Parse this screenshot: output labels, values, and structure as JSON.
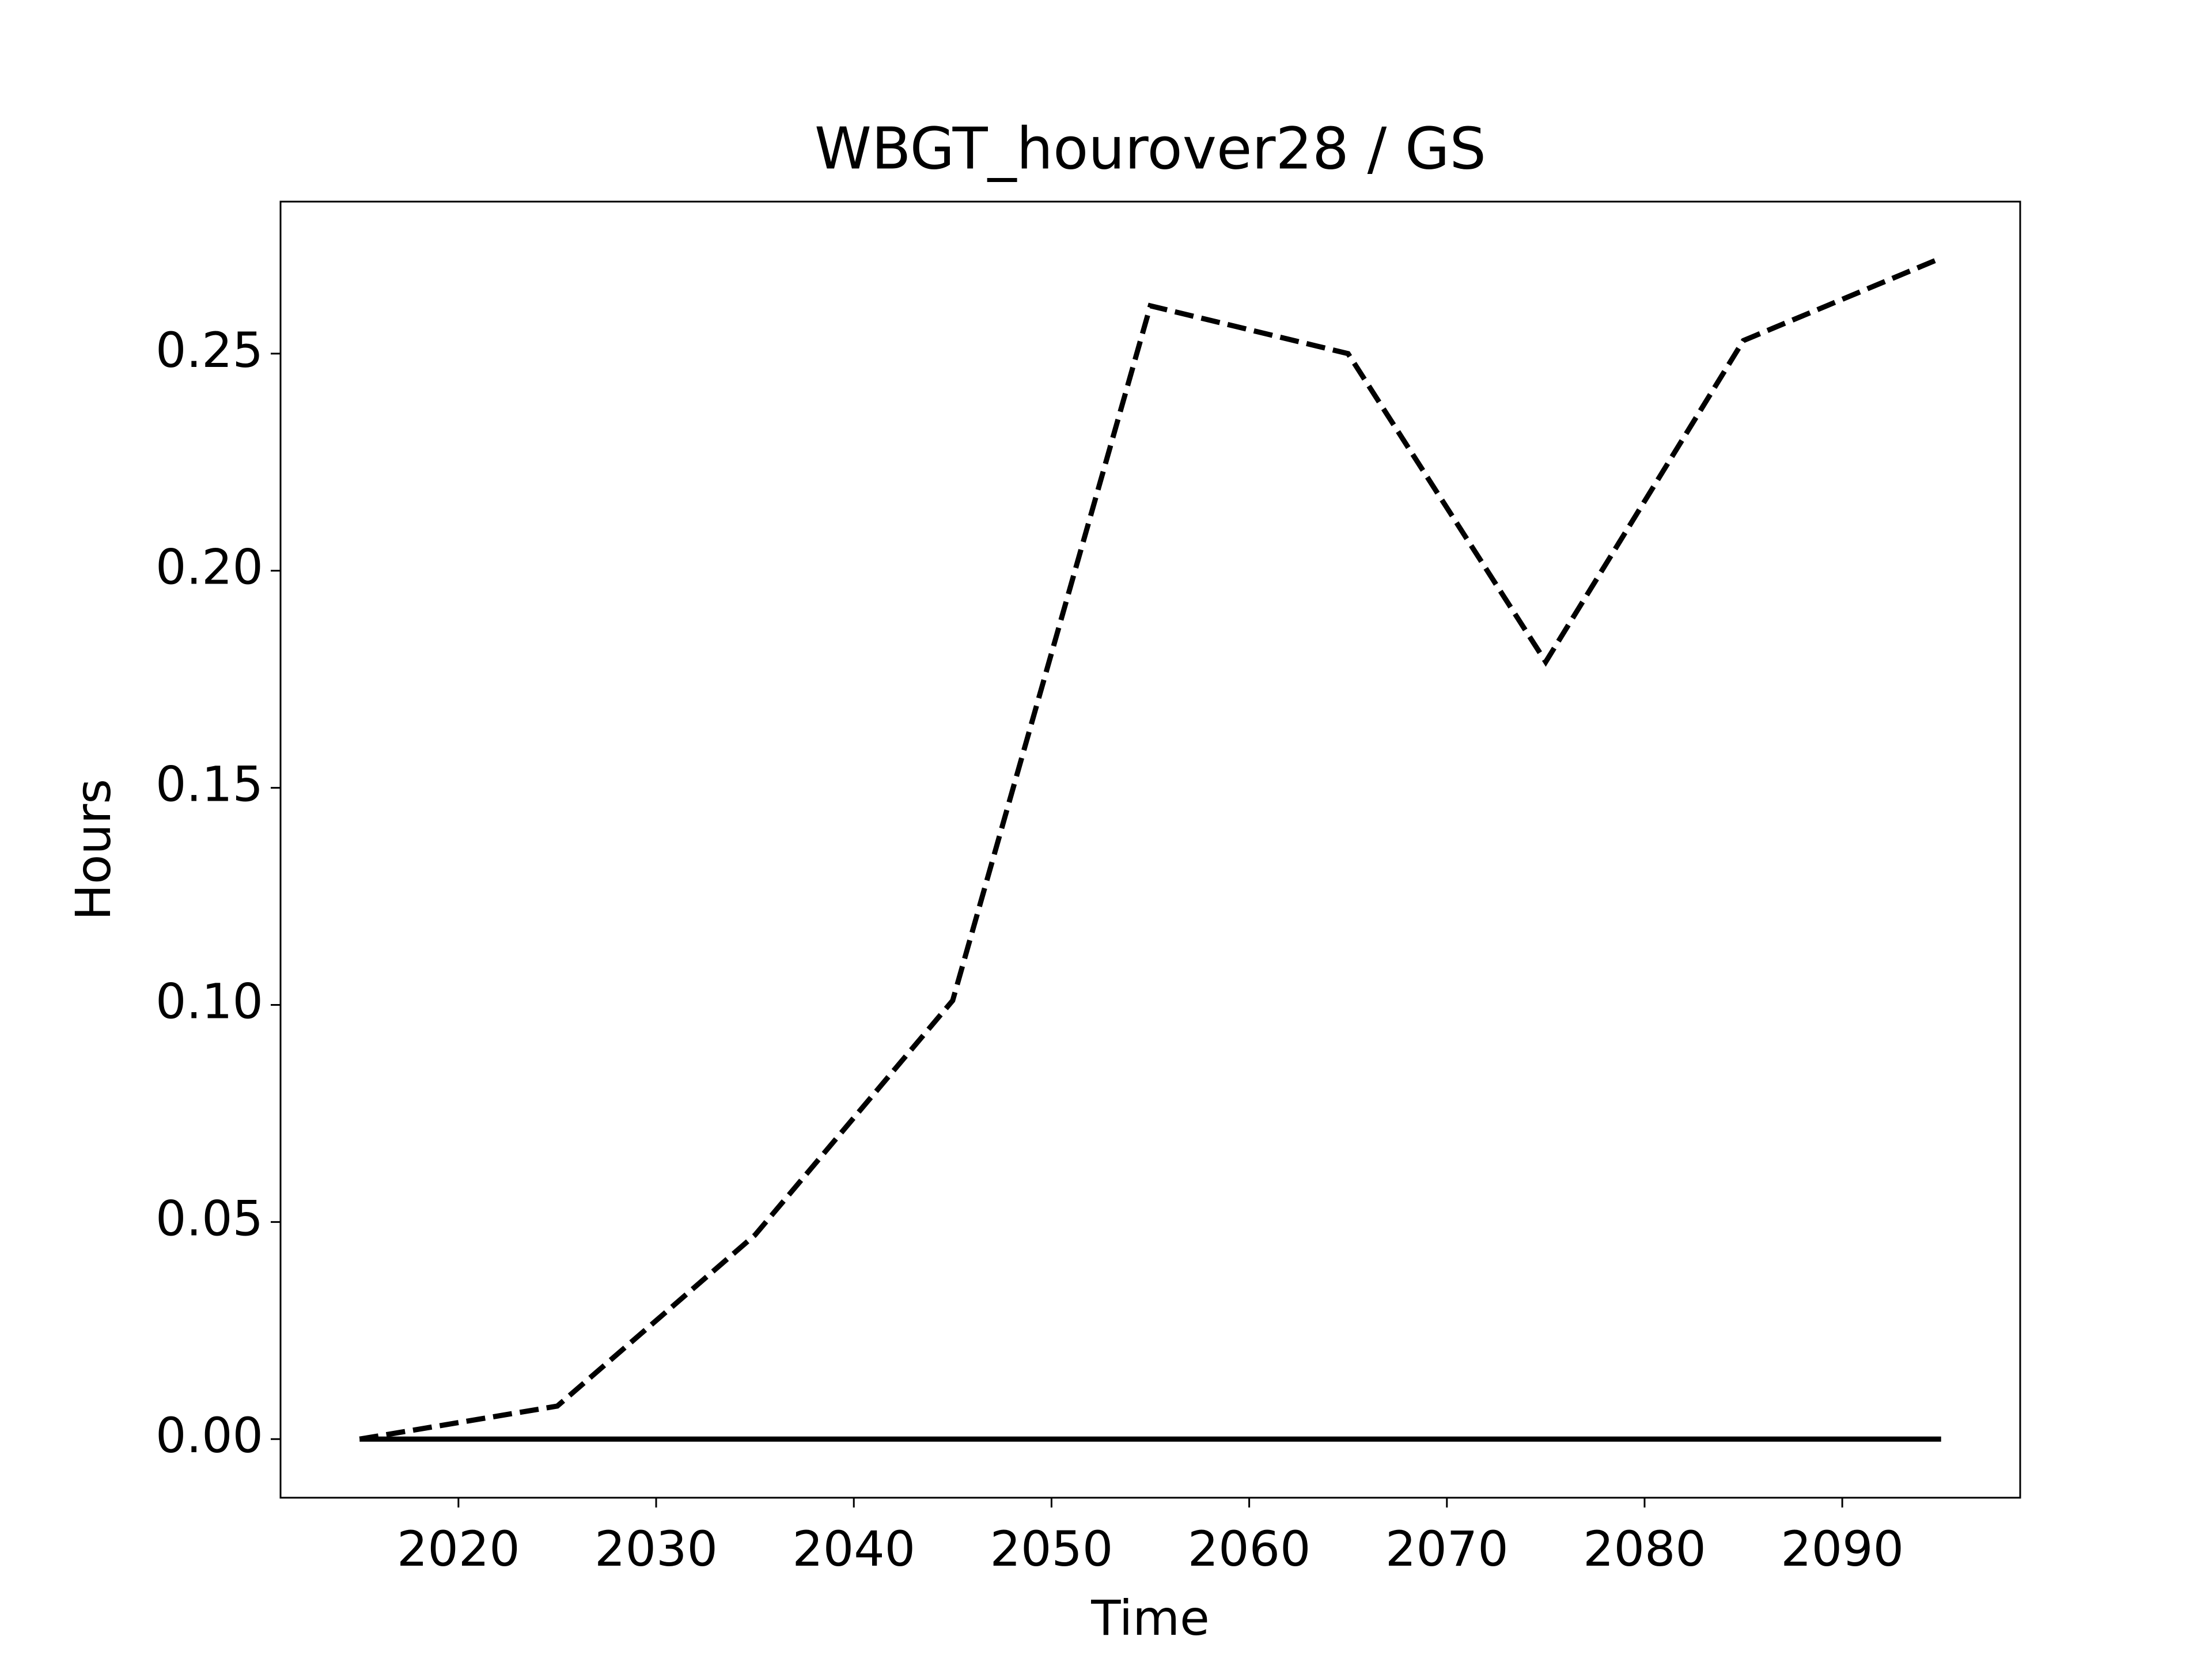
{
  "chart_data": {
    "type": "line",
    "title": "WBGT_hourover28 / GS",
    "x_label": "Time",
    "y_label": "Hours",
    "x": [
      2015,
      2025,
      2035,
      2045,
      2055,
      2065,
      2075,
      2085,
      2095
    ],
    "series": [
      {
        "color": "#000000",
        "linestyle": "dashed",
        "values": [
          0,
          0.0076,
          0.047,
          0.101,
          0.261,
          0.25,
          0.179,
          0.253,
          0.272
        ]
      },
      {
        "color": "#000000",
        "linestyle": "solid",
        "values": [
          0,
          0,
          0,
          0,
          0,
          0,
          0,
          0,
          0
        ]
      }
    ],
    "xlim": [
      2011,
      2099
    ],
    "xticks": [
      2020,
      2030,
      2040,
      2050,
      2060,
      2070,
      2080,
      2090
    ],
    "ylim": [
      -0.0135,
      0.285
    ],
    "yticks": [
      {
        "value": 0,
        "label": "0.00"
      },
      0.05,
      {
        "value": 0.1,
        "label": "0.10"
      },
      0.15,
      {
        "value": 0.2,
        "label": "0.20"
      },
      0.25
    ],
    "grid": false
  }
}
